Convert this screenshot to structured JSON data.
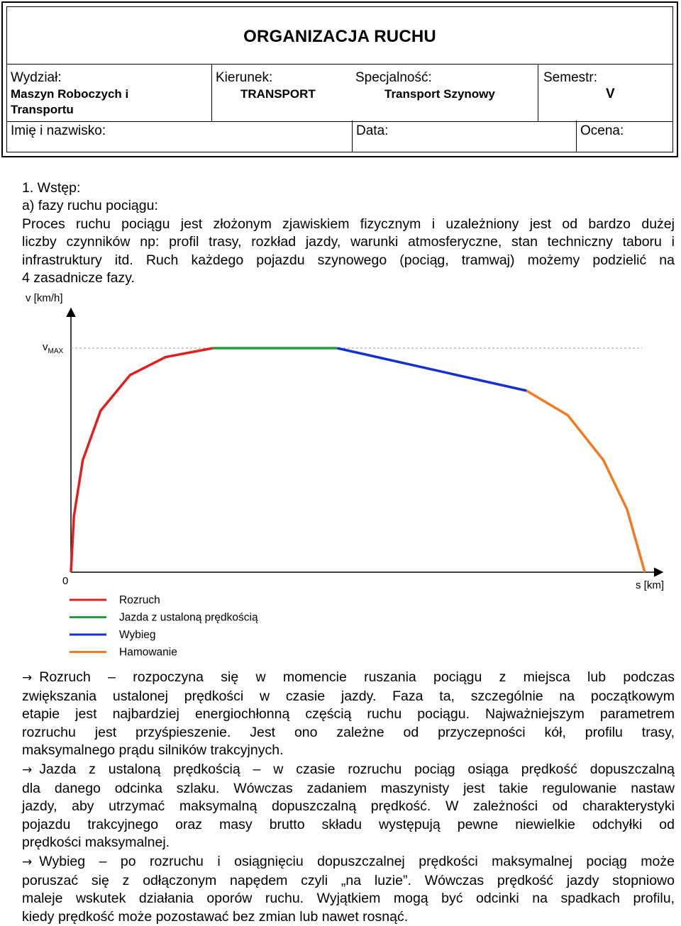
{
  "header": {
    "title": "ORGANIZACJA RUCHU",
    "wydzial_label": "Wydział:",
    "wydzial_value_line1": "Maszyn Roboczych i",
    "wydzial_value_line2": "Transportu",
    "kierunek_label": "Kierunek:",
    "kierunek_value": "TRANSPORT",
    "specjalnosc_label": "Specjalność:",
    "specjalnosc_value": "Transport Szynowy",
    "semestr_label": "Semestr:",
    "semestr_value": "V",
    "imie_label": "Imię i nazwisko:",
    "data_label": "Data:",
    "ocena_label": "Ocena:"
  },
  "intro": {
    "heading": "1. Wstęp:",
    "subheading": "a) fazy ruchu pociągu:",
    "lines": [
      "Proces ruchu pociągu jest złożonym zjawiskiem fizycznym i uzależniony jest od bardzo dużej",
      "liczby czynników np: profil trasy, rozkład jazdy, warunki atmosferyczne, stan techniczny taboru i",
      "infrastruktury itd. Ruch każdego pojazdu szynowego (pociąg, tramwaj) możemy podzielić na",
      "4 zasadnicze fazy."
    ]
  },
  "chart_data": {
    "type": "line",
    "ylabel": "v [km/h]",
    "xlabel": "s [km]",
    "origin_label": "0",
    "vmax_label_main": "v",
    "vmax_label_sub": "MAX",
    "vmax": 1.0,
    "series": [
      {
        "name": "Rozruch",
        "color": "#e02020",
        "points": [
          [
            0.0,
            0.0
          ],
          [
            0.005,
            0.25
          ],
          [
            0.02,
            0.5
          ],
          [
            0.05,
            0.72
          ],
          [
            0.1,
            0.88
          ],
          [
            0.16,
            0.96
          ],
          [
            0.24,
            1.0
          ]
        ]
      },
      {
        "name": "Jazda z ustaloną prędkością",
        "color": "#1f9e3a",
        "points": [
          [
            0.24,
            1.0
          ],
          [
            0.45,
            1.0
          ]
        ]
      },
      {
        "name": "Wybieg",
        "color": "#1530d0",
        "points": [
          [
            0.45,
            1.0
          ],
          [
            0.77,
            0.81
          ]
        ]
      },
      {
        "name": "Hamowanie",
        "color": "#f07a20",
        "points": [
          [
            0.77,
            0.81
          ],
          [
            0.84,
            0.7
          ],
          [
            0.9,
            0.5
          ],
          [
            0.94,
            0.28
          ],
          [
            0.97,
            0.0
          ]
        ]
      }
    ]
  },
  "bullets": [
    {
      "lines": [
        "Rozruch – rozpoczyna się w momencie ruszania pociągu z miejsca lub podczas",
        "zwiększania ustalonej prędkości w czasie jazdy. Faza ta, szczególnie na początkowym",
        "etapie jest najbardziej energiochłonną częścią ruchu pociągu. Najważniejszym parametrem",
        "rozruchu jest przyśpieszenie. Jest ono zależne od przyczepności kół, profilu trasy,",
        "maksymalnego prądu silników trakcyjnych."
      ]
    },
    {
      "lines": [
        "Jazda z ustaloną prędkością – w czasie rozruchu pociąg osiąga prędkość dopuszczalną",
        "dla danego odcinka szlaku. Wówczas zadaniem maszynisty jest takie regulowanie nastaw",
        "jazdy, aby utrzymać maksymalną dopuszczalną prędkość. W zależności od charakterystyki",
        "pojazdu trakcyjnego oraz masy brutto składu występują pewne niewielkie odchyłki od",
        "prędkości maksymalnej."
      ]
    },
    {
      "lines": [
        "Wybieg – po rozruchu i osiągnięciu dopuszczalnej prędkości maksymalnej pociąg może",
        "poruszać się z odłączonym napędem czyli „na luzie”.  Wówczas prędkość jazdy stopniowo",
        "maleje wskutek działania oporów ruchu. Wyjątkiem mogą być odcinki na spadkach profilu,",
        "kiedy prędkość może pozostawać bez zmian lub nawet rosnąć."
      ]
    }
  ]
}
